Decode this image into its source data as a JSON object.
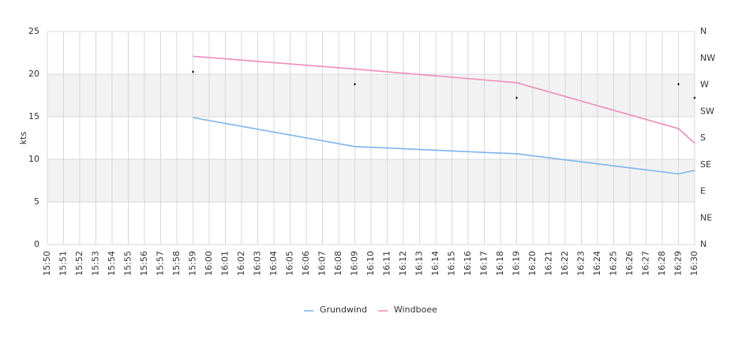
{
  "chart_data": {
    "type": "line",
    "y_label": "kts",
    "categories": [
      "15:50",
      "15:51",
      "15:52",
      "15:53",
      "15:54",
      "15:55",
      "15:56",
      "15:57",
      "15:58",
      "15:59",
      "16:00",
      "16:01",
      "16:02",
      "16:03",
      "16:04",
      "16:05",
      "16:06",
      "16:07",
      "16:08",
      "16:09",
      "16:10",
      "16:11",
      "16:12",
      "16:13",
      "16:14",
      "16:15",
      "16:16",
      "16:17",
      "16:18",
      "16:19",
      "16:20",
      "16:21",
      "16:22",
      "16:23",
      "16:24",
      "16:25",
      "16:26",
      "16:27",
      "16:28",
      "16:29",
      "16:30"
    ],
    "ylim": [
      0,
      25
    ],
    "yticks": [
      0,
      5,
      10,
      15,
      20,
      25
    ],
    "y2lim": [
      0,
      360
    ],
    "y2ticks": [
      {
        "value": 0,
        "label": "N"
      },
      {
        "value": 45,
        "label": "NE"
      },
      {
        "value": 90,
        "label": "E"
      },
      {
        "value": 135,
        "label": "SE"
      },
      {
        "value": 180,
        "label": "S"
      },
      {
        "value": 225,
        "label": "SW"
      },
      {
        "value": 270,
        "label": "W"
      },
      {
        "value": 315,
        "label": "NW"
      },
      {
        "value": 360,
        "label": "N"
      }
    ],
    "grid": true,
    "alternate_bands": true,
    "legend": "bottom",
    "series": [
      {
        "name": "Grundwind",
        "color": "#7cb5ec",
        "x": [
          "15:59",
          "16:09",
          "16:19",
          "16:29",
          "16:30"
        ],
        "values": [
          14.9,
          11.5,
          10.65,
          8.3,
          8.7
        ]
      },
      {
        "name": "Windboee",
        "color": "#f08cbc",
        "x": [
          "15:59",
          "16:09",
          "16:19",
          "16:29",
          "16:30"
        ],
        "values": [
          22.1,
          20.6,
          19.0,
          13.6,
          11.9
        ]
      },
      {
        "color": "#000000",
        "axis": "y2",
        "marker": "cross",
        "x": [
          "15:59",
          "16:09",
          "16:19",
          "16:29",
          "16:30"
        ],
        "values": [
          292,
          271,
          248,
          271,
          248
        ]
      }
    ]
  }
}
